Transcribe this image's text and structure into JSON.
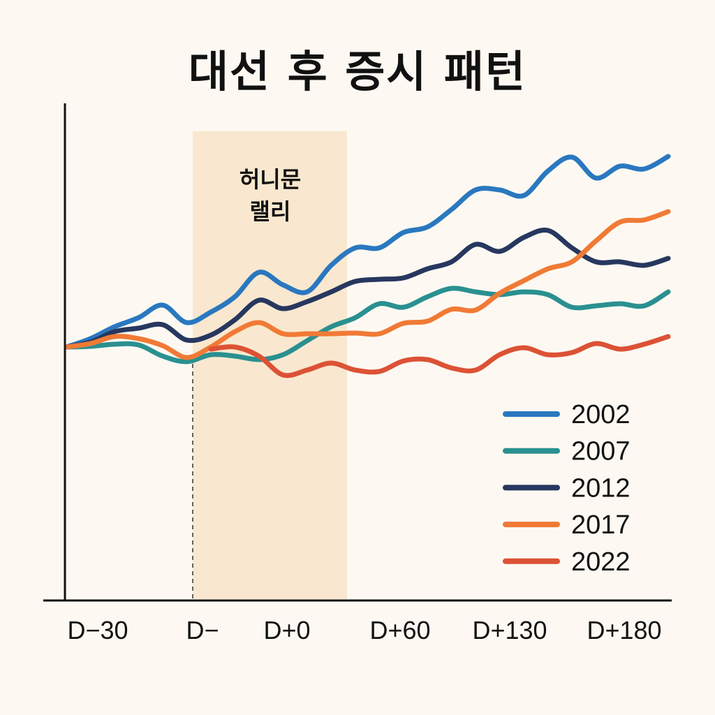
{
  "chart_data": {
    "type": "line",
    "title": "대선 후 증시 패턴",
    "xlabel": "",
    "ylabel": "",
    "x_tick_labels": [
      "D−30",
      "D−",
      "D+0",
      "D+60",
      "D+130",
      "D+180"
    ],
    "annotation": {
      "text_line1": "허니문",
      "text_line2": "랠리"
    },
    "grid": false,
    "legend_position": "bottom-right",
    "x": [
      0,
      1,
      2,
      3,
      4,
      5,
      6,
      7,
      8,
      9,
      10,
      11,
      12,
      13,
      14,
      15,
      16,
      17,
      18,
      19,
      20,
      21,
      22,
      23,
      24,
      25
    ],
    "ylim": [
      -36,
      35
    ],
    "series": [
      {
        "name": "2002",
        "color": "#2a78c0",
        "values": [
          0,
          1.2,
          2.9,
          4.2,
          6,
          3.5,
          5,
          7.2,
          10.7,
          8.9,
          7.9,
          11.7,
          14.2,
          14.2,
          16.4,
          17.2,
          19.7,
          22.5,
          22.5,
          21.7,
          25.2,
          27.2,
          24.2,
          25.9,
          25.5,
          27.3
        ]
      },
      {
        "name": "2007",
        "color": "#2a9090",
        "values": [
          0,
          0.1,
          0.4,
          0.3,
          -1.3,
          -2.1,
          -1.1,
          -1.3,
          -1.8,
          -1.1,
          0.9,
          2.9,
          4.2,
          6.2,
          5.7,
          7.2,
          8.4,
          7.9,
          7.5,
          7.9,
          7.5,
          5.7,
          5.9,
          6.2,
          5.9,
          7.9
        ]
      },
      {
        "name": "2012",
        "color": "#27375f",
        "values": [
          0,
          0.7,
          2.2,
          2.7,
          3.2,
          1,
          1.7,
          3.9,
          6.7,
          5.5,
          6.5,
          7.9,
          9.4,
          9.7,
          9.9,
          11.2,
          12.2,
          14.7,
          13.7,
          15.7,
          16.7,
          14.2,
          12.2,
          12.2,
          11.7,
          12.7
        ]
      },
      {
        "name": "2017",
        "color": "#f07a35",
        "values": [
          0,
          0.5,
          1.5,
          1.2,
          0.2,
          -1.5,
          0,
          2.2,
          3.5,
          1.9,
          1.9,
          1.9,
          2,
          1.9,
          3.4,
          3.7,
          5.4,
          5.3,
          7.7,
          9.5,
          11.2,
          12.2,
          15.2,
          17.9,
          18.2,
          19.4
        ]
      },
      {
        "name": "2022",
        "color": "#dc5235",
        "values": [
          null,
          null,
          null,
          null,
          null,
          null,
          -0.3,
          0,
          -1.3,
          -4,
          -3.3,
          -2.3,
          -3.3,
          -3.5,
          -2,
          -1.8,
          -3,
          -3.3,
          -1.1,
          -0.1,
          -1.1,
          -0.8,
          0.5,
          -0.3,
          0.4,
          1.5
        ]
      }
    ]
  }
}
